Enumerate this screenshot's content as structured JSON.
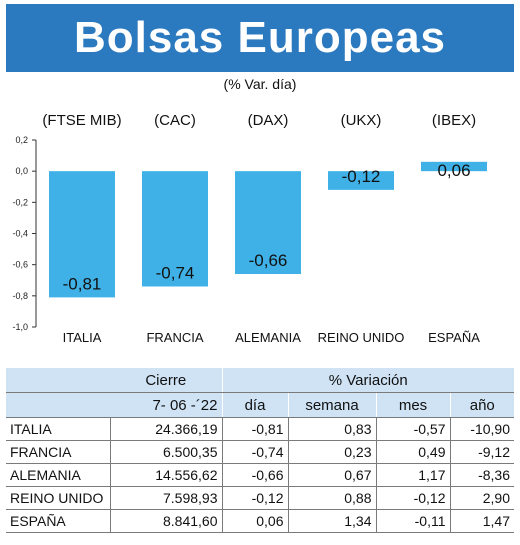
{
  "title": "Bolsas Europeas",
  "subtitle": "(% Var. día)",
  "colors": {
    "title_bg": "#2b79bf",
    "bar": "#3fb1e7",
    "table_header": "#cfe3f5"
  },
  "chart_data": {
    "type": "bar",
    "title": "Bolsas Europeas",
    "subtitle": "(% Var. día)",
    "categories": [
      "ITALIA",
      "FRANCIA",
      "ALEMANIA",
      "REINO UNIDO",
      "ESPAÑA"
    ],
    "index_labels": [
      "(FTSE MIB)",
      "(CAC)",
      "(DAX)",
      "(UKX)",
      "(IBEX)"
    ],
    "values": [
      -0.81,
      -0.74,
      -0.66,
      -0.12,
      0.06
    ],
    "value_labels": [
      "-0,81",
      "-0,74",
      "-0,66",
      "-0,12",
      "0,06"
    ],
    "ylim": [
      -1.0,
      0.2
    ],
    "yticks": [
      0.2,
      0.0,
      -0.2,
      -0.4,
      -0.6,
      -0.8,
      -1.0
    ],
    "ytick_labels": [
      "0,2",
      "0,0",
      "-0,2",
      "-0,4",
      "-0,6",
      "-0,8",
      "-1,0"
    ],
    "grid": false,
    "xlabel": "",
    "ylabel": ""
  },
  "table": {
    "header_cierre": "Cierre",
    "header_variacion": "% Variación",
    "date": "7- 06 -´22",
    "col_dia": "día",
    "col_semana": "semana",
    "col_mes": "mes",
    "col_anio": "año",
    "rows": [
      {
        "pais": "ITALIA",
        "cierre": "24.366,19",
        "dia": "-0,81",
        "semana": "0,83",
        "mes": "-0,57",
        "anio": "-10,90"
      },
      {
        "pais": "FRANCIA",
        "cierre": "6.500,35",
        "dia": "-0,74",
        "semana": "0,23",
        "mes": "0,49",
        "anio": "-9,12"
      },
      {
        "pais": "ALEMANIA",
        "cierre": "14.556,62",
        "dia": "-0,66",
        "semana": "0,67",
        "mes": "1,17",
        "anio": "-8,36"
      },
      {
        "pais": "REINO UNIDO",
        "cierre": "7.598,93",
        "dia": "-0,12",
        "semana": "0,88",
        "mes": "-0,12",
        "anio": "2,90"
      },
      {
        "pais": "ESPAÑA",
        "cierre": "8.841,60",
        "dia": "0,06",
        "semana": "1,34",
        "mes": "-0,11",
        "anio": "1,47"
      }
    ]
  }
}
